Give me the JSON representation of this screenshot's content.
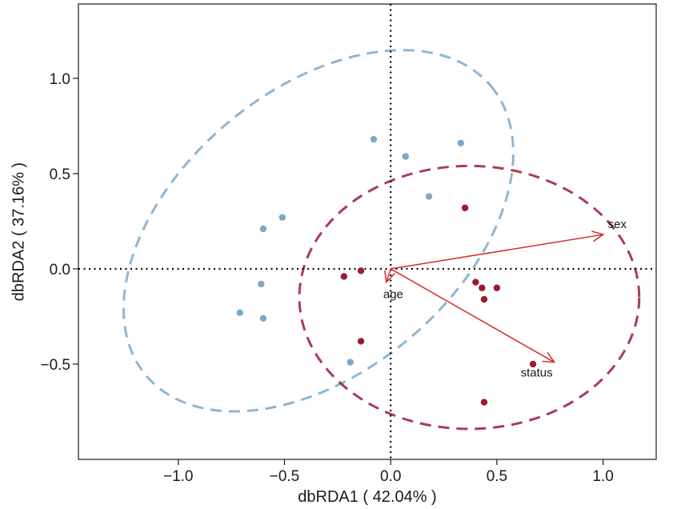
{
  "chart_data": {
    "type": "scatter",
    "title": "",
    "xlabel": "dbRDA1 ( 42.04% )",
    "ylabel": "dbRDA2 ( 37.16% )",
    "xlim": [
      -1.47,
      1.25
    ],
    "ylim": [
      -1.0,
      1.39
    ],
    "x_ticks": [
      -1.0,
      -0.5,
      0.0,
      0.5,
      1.0
    ],
    "x_tick_labels": [
      "−1.0",
      "−0.5",
      "0.0",
      "0.5",
      "1.0"
    ],
    "y_ticks": [
      -0.5,
      0.0,
      0.5,
      1.0
    ],
    "y_tick_labels": [
      "−0.5",
      "0.0",
      "0.5",
      "1.0"
    ],
    "grid": false,
    "reference_lines": [
      {
        "axis": "x",
        "value": 0
      },
      {
        "axis": "y",
        "value": 0
      }
    ],
    "series": [
      {
        "color": "#7aa9c9",
        "points": [
          {
            "x": -0.08,
            "y": 0.68
          },
          {
            "x": 0.07,
            "y": 0.59
          },
          {
            "x": 0.33,
            "y": 0.66
          },
          {
            "x": 0.18,
            "y": 0.38
          },
          {
            "x": -0.51,
            "y": 0.27
          },
          {
            "x": -0.6,
            "y": 0.21
          },
          {
            "x": -0.61,
            "y": -0.08
          },
          {
            "x": -0.71,
            "y": -0.23
          },
          {
            "x": -0.6,
            "y": -0.26
          },
          {
            "x": -0.19,
            "y": -0.49
          }
        ],
        "ellipse": {
          "cx": -0.34,
          "cy": 0.2,
          "rx": 1.06,
          "ry": 0.74,
          "angle_deg": 40
        }
      },
      {
        "color": "#9b1b30",
        "points": [
          {
            "x": 0.35,
            "y": 0.32
          },
          {
            "x": -0.14,
            "y": -0.01
          },
          {
            "x": -0.22,
            "y": -0.04
          },
          {
            "x": 0.4,
            "y": -0.07
          },
          {
            "x": 0.43,
            "y": -0.1
          },
          {
            "x": 0.5,
            "y": -0.1
          },
          {
            "x": 0.44,
            "y": -0.16
          },
          {
            "x": -0.14,
            "y": -0.38
          },
          {
            "x": 0.67,
            "y": -0.5
          },
          {
            "x": 0.44,
            "y": -0.7
          }
        ],
        "ellipse": {
          "cx": 0.37,
          "cy": -0.15,
          "rx": 0.8,
          "ry": 0.69,
          "angle_deg": 0
        }
      }
    ],
    "arrows": [
      {
        "label": "sex",
        "x": 1.0,
        "y": 0.18
      },
      {
        "label": "age",
        "x": -0.02,
        "y": -0.07
      },
      {
        "label": "status",
        "x": 0.77,
        "y": -0.49
      }
    ],
    "colors": {
      "arrow": "#d62b2b",
      "axis": "#1a1a1a",
      "zero_line": "#000000"
    }
  }
}
